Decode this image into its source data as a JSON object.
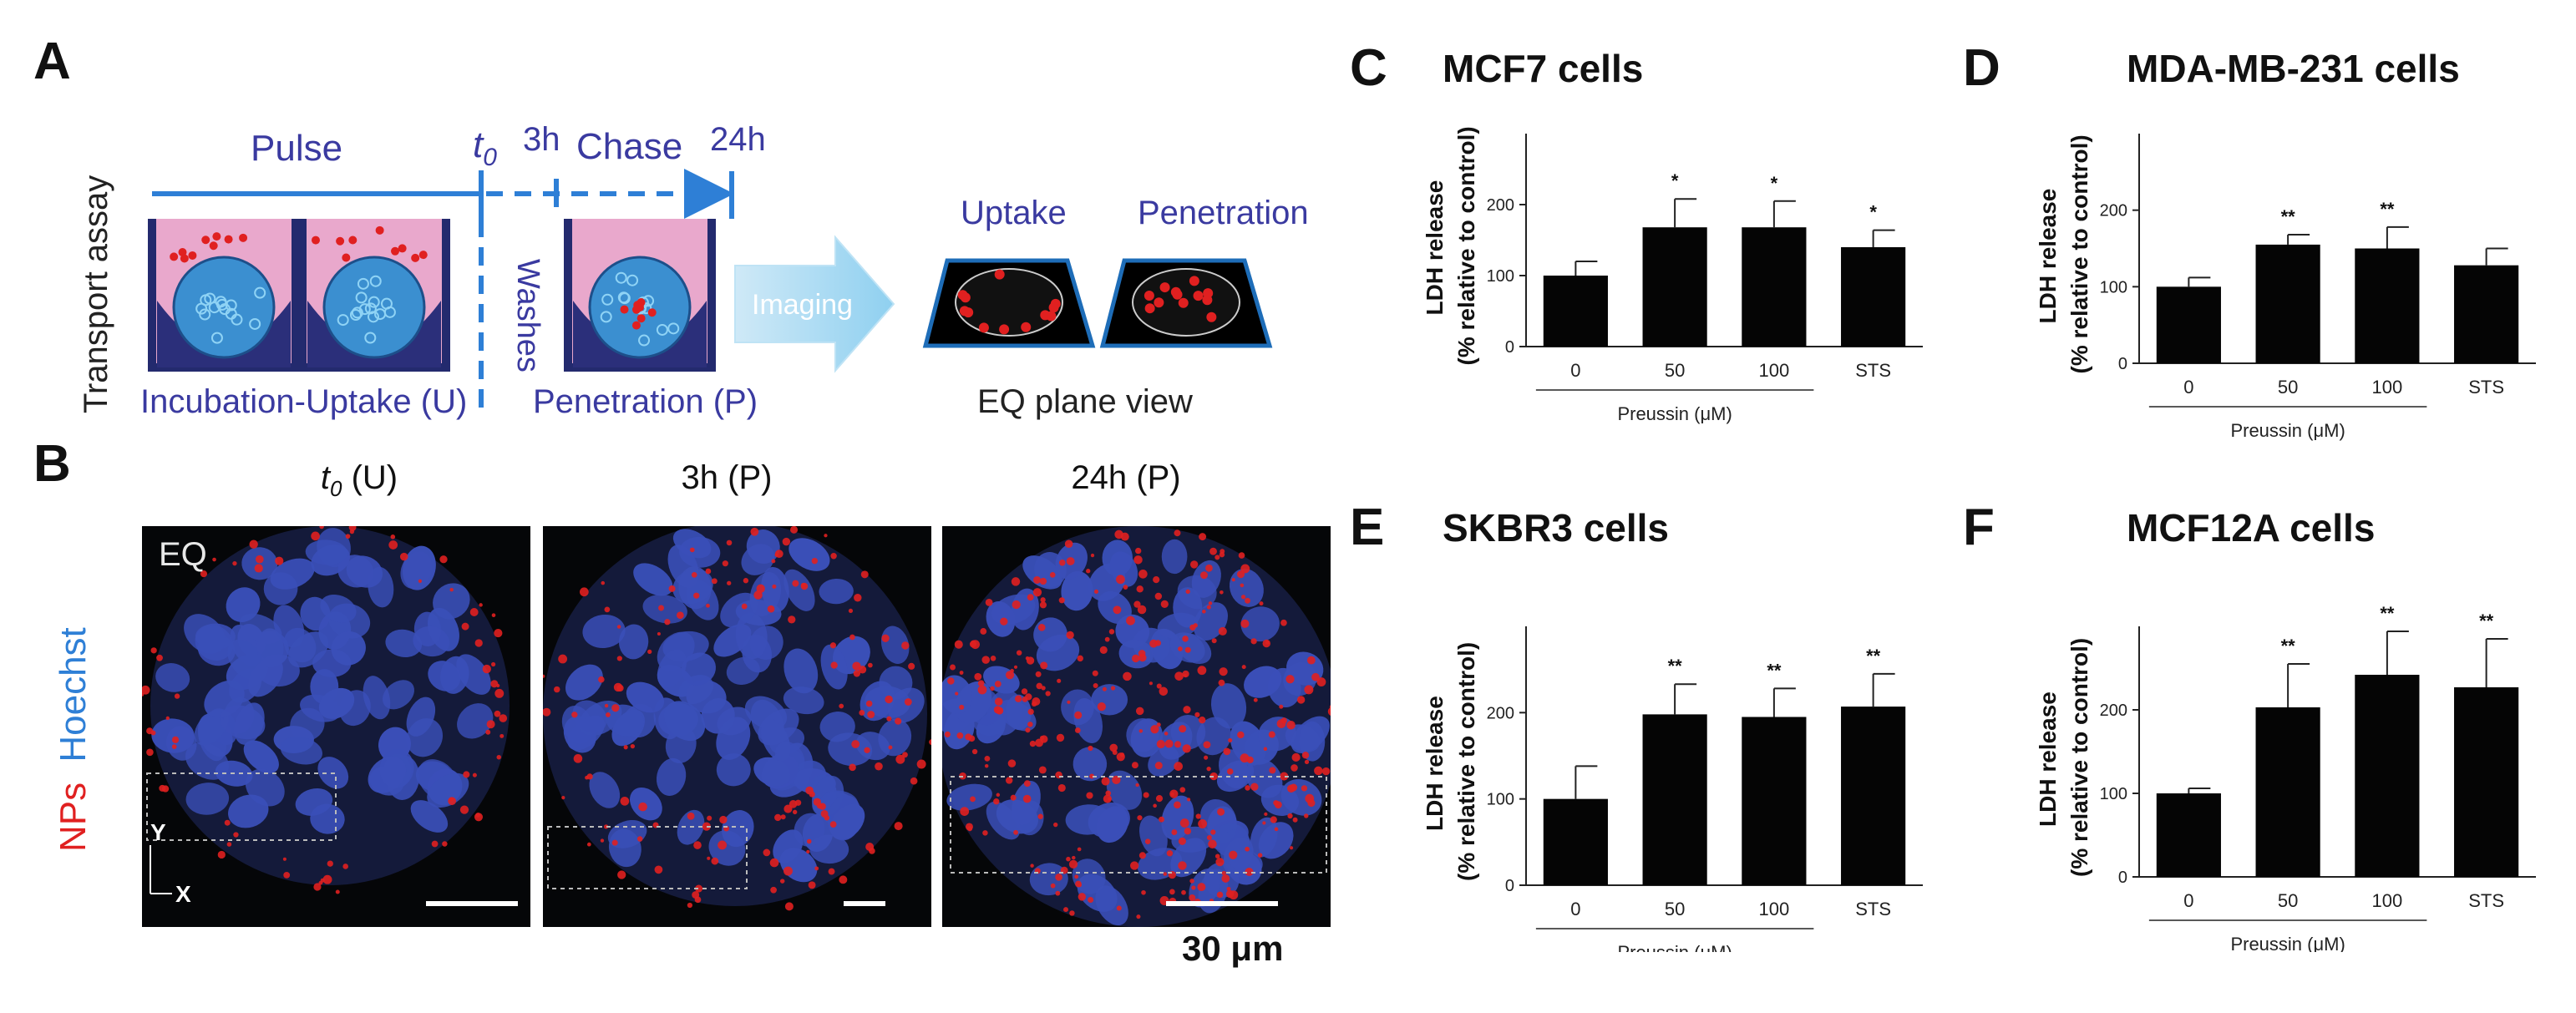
{
  "panel_a": {
    "letter": "A",
    "ylabel": "Transport assay",
    "pulse": "Pulse",
    "t0": "t",
    "t0_sub": "0",
    "three_h": "3h",
    "chase": "Chase",
    "twentyfour_h": "24h",
    "washes": "Washes",
    "incubation": "Incubation-Uptake (U)",
    "penetration_step": "Penetration (P)",
    "imaging": "Imaging",
    "uptake": "Uptake",
    "penetration": "Penetration",
    "eq_plane": "EQ plane view"
  },
  "panel_b": {
    "letter": "B",
    "label_t0": "t",
    "label_t0_sub": "0",
    "label_t0_suffix": "(U)",
    "label_3h": "3h (P)",
    "label_24h": "24h (P)",
    "eq": "EQ",
    "ylabel_nps": "NPs",
    "ylabel_hoechst": "Hoechst",
    "axis_y": "Y",
    "axis_x": "X",
    "scale": "30 μm",
    "colors": {
      "nuclei": "#3a4fb8",
      "nps": "#e02020",
      "background": "#050608"
    }
  },
  "chart_data": [
    {
      "letter": "C",
      "type": "bar",
      "title": "MCF7 cells",
      "categories": [
        "0",
        "50",
        "100",
        "STS"
      ],
      "values": [
        100,
        168,
        168,
        140
      ],
      "errors": [
        20,
        40,
        37,
        24
      ],
      "significance": [
        "",
        "*",
        "*",
        "*"
      ],
      "ylabel_line1": "LDH release",
      "ylabel_line2": "(% relative to control)",
      "xlabel": "Preussin (μM)",
      "yticks": [
        0,
        100,
        200
      ],
      "ylim": [
        0,
        300
      ]
    },
    {
      "letter": "D",
      "type": "bar",
      "title": "MDA-MB-231 cells",
      "categories": [
        "0",
        "50",
        "100",
        "STS"
      ],
      "values": [
        100,
        155,
        150,
        128
      ],
      "errors": [
        12,
        13,
        28,
        22
      ],
      "significance": [
        "",
        "**",
        "**",
        ""
      ],
      "ylabel_line1": "LDH release",
      "ylabel_line2": "(% relative to control)",
      "xlabel": "Preussin (μM)",
      "yticks": [
        0,
        100,
        200
      ],
      "ylim": [
        0,
        300
      ]
    },
    {
      "letter": "E",
      "type": "bar",
      "title": "SKBR3 cells",
      "categories": [
        "0",
        "50",
        "100",
        "STS"
      ],
      "values": [
        100,
        198,
        195,
        207
      ],
      "errors": [
        38,
        35,
        33,
        38
      ],
      "significance": [
        "",
        "**",
        "**",
        "**"
      ],
      "ylabel_line1": "LDH release",
      "ylabel_line2": "(% relative to control)",
      "xlabel": "Preussin (μM)",
      "yticks": [
        0,
        100,
        200
      ],
      "ylim": [
        0,
        300
      ]
    },
    {
      "letter": "F",
      "type": "bar",
      "title": "MCF12A cells",
      "categories": [
        "0",
        "50",
        "100",
        "STS"
      ],
      "values": [
        100,
        203,
        242,
        227
      ],
      "errors": [
        6,
        52,
        52,
        58
      ],
      "significance": [
        "",
        "**",
        "**",
        "**"
      ],
      "ylabel_line1": "LDH release",
      "ylabel_line2": "(% relative to control)",
      "xlabel": "Preussin (μM)",
      "yticks": [
        0,
        100,
        200
      ],
      "ylim": [
        0,
        300
      ]
    }
  ]
}
